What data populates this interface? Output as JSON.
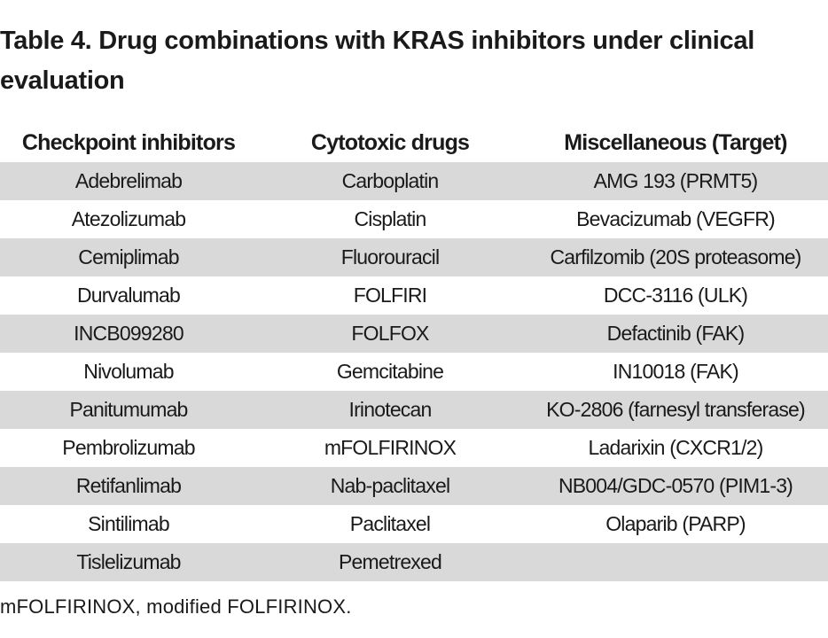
{
  "title": "Table 4. Drug combinations with KRAS inhibitors under clinical evaluation",
  "headers": [
    "Checkpoint inhibitors",
    "Cytotoxic drugs",
    "Miscellaneous (Target)"
  ],
  "rows": [
    [
      "Adebrelimab",
      "Carboplatin",
      "AMG 193 (PRMT5)"
    ],
    [
      "Atezolizumab",
      "Cisplatin",
      "Bevacizumab (VEGFR)"
    ],
    [
      "Cemiplimab",
      "Fluorouracil",
      "Carfilzomib (20S proteasome)"
    ],
    [
      "Durvalumab",
      "FOLFIRI",
      "DCC-3116 (ULK)"
    ],
    [
      "INCB099280",
      "FOLFOX",
      "Defactinib (FAK)"
    ],
    [
      "Nivolumab",
      "Gemcitabine",
      "IN10018 (FAK)"
    ],
    [
      "Panitumumab",
      "Irinotecan",
      "KO-2806 (farnesyl transferase)"
    ],
    [
      "Pembrolizumab",
      "mFOLFIRINOX",
      "Ladarixin (CXCR1/2)"
    ],
    [
      "Retifanlimab",
      "Nab-paclitaxel",
      "NB004/GDC-0570 (PIM1-3)"
    ],
    [
      "Sintilimab",
      "Paclitaxel",
      "Olaparib (PARP)"
    ],
    [
      "Tislelizumab",
      "Pemetrexed",
      ""
    ]
  ],
  "footnote": "mFOLFIRINOX, modified FOLFIRINOX.",
  "colors": {
    "stripe": "#d9d9d9",
    "text": "#1a1a1a"
  }
}
